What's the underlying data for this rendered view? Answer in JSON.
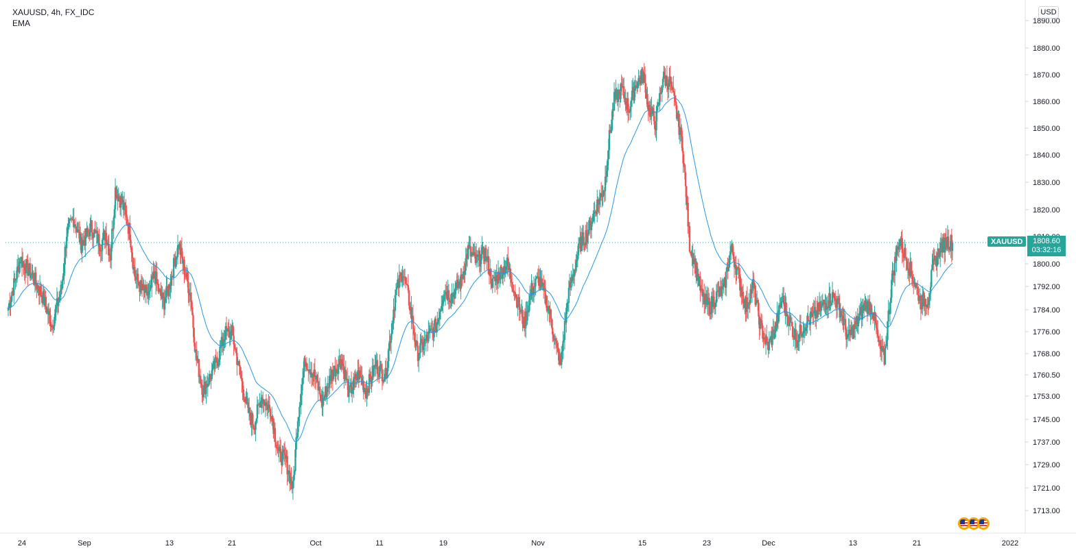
{
  "legend": {
    "symbol_line": "XAUUSD, 4h, FX_IDC",
    "indicator": "EMA"
  },
  "currency": "USD",
  "symbol_badge": "XAUUSD",
  "last_price": "1808.60",
  "countdown": "03:32:16",
  "colors": {
    "up": "#26a69a",
    "down": "#ef5350",
    "ema": "#2196f3",
    "grid": "#f0f3fa",
    "axis_text": "#131722",
    "price_line": "#26a69a"
  },
  "events_icon": "us-flag-events-icon",
  "chart_data": {
    "type": "candlestick",
    "title": "",
    "xlabel": "",
    "ylabel": "",
    "ylim": [
      1707.5,
      1893.0
    ],
    "x_ticks": [
      "24",
      "Sep",
      "13",
      "21",
      "Oct",
      "11",
      "19",
      "Nov",
      "15",
      "23",
      "Dec",
      "13",
      "21",
      "2022"
    ],
    "y_ticks": [
      "1890.00",
      "1880.00",
      "1870.00",
      "1860.00",
      "1850.00",
      "1840.00",
      "1830.00",
      "1820.00",
      "1810.00",
      "1800.00",
      "1792.00",
      "1784.00",
      "1776.00",
      "1768.00",
      "1760.50",
      "1753.00",
      "1745.00",
      "1737.00",
      "1729.00",
      "1721.00",
      "1713.00"
    ],
    "last_price": 1808.6,
    "close_path": [
      [
        0,
        1786
      ],
      [
        5,
        1803
      ],
      [
        10,
        1797
      ],
      [
        14,
        1790
      ],
      [
        18,
        1780
      ],
      [
        22,
        1793
      ],
      [
        24,
        1812
      ],
      [
        27,
        1817
      ],
      [
        30,
        1808
      ],
      [
        34,
        1814
      ],
      [
        38,
        1808
      ],
      [
        40,
        1812
      ],
      [
        42,
        1804
      ],
      [
        44,
        1827
      ],
      [
        47,
        1822
      ],
      [
        50,
        1812
      ],
      [
        52,
        1797
      ],
      [
        55,
        1792
      ],
      [
        58,
        1790
      ],
      [
        60,
        1798
      ],
      [
        62,
        1791
      ],
      [
        64,
        1788
      ],
      [
        66,
        1793
      ],
      [
        70,
        1808
      ],
      [
        73,
        1797
      ],
      [
        75,
        1790
      ],
      [
        77,
        1770
      ],
      [
        80,
        1757
      ],
      [
        83,
        1762
      ],
      [
        86,
        1768
      ],
      [
        89,
        1777
      ],
      [
        92,
        1777
      ],
      [
        95,
        1764
      ],
      [
        98,
        1751
      ],
      [
        101,
        1745
      ],
      [
        104,
        1755
      ],
      [
        108,
        1750
      ],
      [
        111,
        1735
      ],
      [
        114,
        1733
      ],
      [
        117,
        1723
      ],
      [
        119,
        1748
      ],
      [
        122,
        1768
      ],
      [
        126,
        1762
      ],
      [
        129,
        1753
      ],
      [
        133,
        1763
      ],
      [
        137,
        1768
      ],
      [
        140,
        1756
      ],
      [
        144,
        1763
      ],
      [
        147,
        1757
      ],
      [
        151,
        1766
      ],
      [
        155,
        1762
      ],
      [
        159,
        1790
      ],
      [
        162,
        1799
      ],
      [
        165,
        1787
      ],
      [
        168,
        1770
      ],
      [
        172,
        1775
      ],
      [
        176,
        1780
      ],
      [
        179,
        1792
      ],
      [
        182,
        1790
      ],
      [
        186,
        1795
      ],
      [
        189,
        1806
      ],
      [
        192,
        1802
      ],
      [
        196,
        1805
      ],
      [
        199,
        1794
      ],
      [
        202,
        1798
      ],
      [
        205,
        1801
      ],
      [
        209,
        1789
      ],
      [
        212,
        1780
      ],
      [
        215,
        1792
      ],
      [
        218,
        1796
      ],
      [
        222,
        1786
      ],
      [
        225,
        1773
      ],
      [
        227,
        1766
      ],
      [
        230,
        1790
      ],
      [
        232,
        1797
      ],
      [
        235,
        1808
      ],
      [
        238,
        1812
      ],
      [
        242,
        1822
      ],
      [
        245,
        1828
      ],
      [
        247,
        1845
      ],
      [
        249,
        1858
      ],
      [
        252,
        1862
      ],
      [
        255,
        1855
      ],
      [
        258,
        1864
      ],
      [
        261,
        1867
      ],
      [
        263,
        1856
      ],
      [
        266,
        1850
      ],
      [
        269,
        1866
      ],
      [
        272,
        1864
      ],
      [
        275,
        1852
      ],
      [
        277,
        1843
      ],
      [
        280,
        1808
      ],
      [
        282,
        1802
      ],
      [
        285,
        1790
      ],
      [
        288,
        1786
      ],
      [
        291,
        1790
      ],
      [
        294,
        1792
      ],
      [
        297,
        1807
      ],
      [
        300,
        1797
      ],
      [
        303,
        1786
      ],
      [
        306,
        1794
      ],
      [
        309,
        1780
      ],
      [
        312,
        1772
      ],
      [
        315,
        1778
      ],
      [
        318,
        1789
      ],
      [
        321,
        1781
      ],
      [
        324,
        1775
      ],
      [
        327,
        1780
      ],
      [
        331,
        1783
      ],
      [
        335,
        1787
      ],
      [
        339,
        1790
      ],
      [
        342,
        1785
      ],
      [
        345,
        1775
      ],
      [
        349,
        1781
      ],
      [
        352,
        1787
      ],
      [
        355,
        1786
      ],
      [
        358,
        1772
      ],
      [
        360,
        1768
      ],
      [
        363,
        1795
      ],
      [
        366,
        1810
      ],
      [
        369,
        1803
      ],
      [
        372,
        1796
      ],
      [
        375,
        1788
      ],
      [
        378,
        1789
      ],
      [
        380,
        1800
      ],
      [
        383,
        1807
      ],
      [
        386,
        1809
      ],
      [
        388,
        1808.6
      ]
    ]
  }
}
